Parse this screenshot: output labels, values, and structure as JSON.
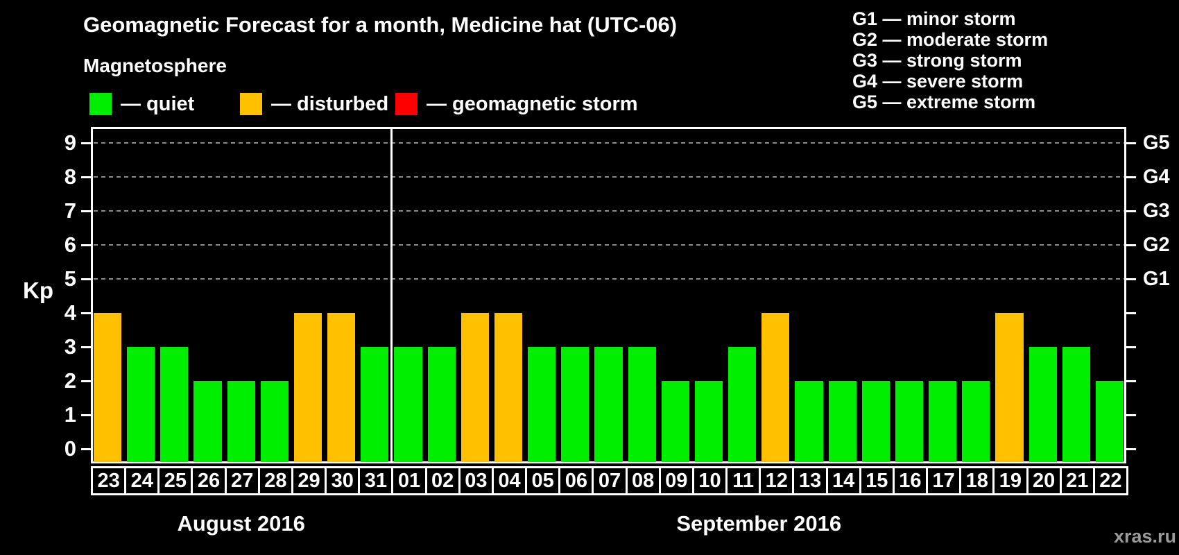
{
  "page": {
    "watermark": "xras.ru"
  },
  "chart_data": {
    "type": "bar",
    "title": "Geomagnetic Forecast for a month, Medicine hat (UTC-06)",
    "subtitle": "Magnetosphere",
    "ylabel": "Kp",
    "ylim": [
      0,
      9
    ],
    "yticks": [
      0,
      1,
      2,
      3,
      4,
      5,
      6,
      7,
      8,
      9
    ],
    "grid": {
      "dashed_levels": [
        5,
        6,
        7,
        8,
        9
      ],
      "color": "#8c8c8c"
    },
    "colors": {
      "quiet": "#00EE00",
      "disturbed": "#FFC000",
      "storm": "#FF0000"
    },
    "legend": [
      {
        "status": "quiet",
        "label": "— quiet"
      },
      {
        "status": "disturbed",
        "label": "— disturbed"
      },
      {
        "status": "storm",
        "label": "— geomagnetic storm"
      }
    ],
    "g_scale_legend": [
      "G1 — minor storm",
      "G2 — moderate storm",
      "G3 — strong storm",
      "G4 — severe storm",
      "G5 — extreme storm"
    ],
    "right_axis": [
      {
        "kp": 9,
        "label": "G5"
      },
      {
        "kp": 8,
        "label": "G4"
      },
      {
        "kp": 7,
        "label": "G3"
      },
      {
        "kp": 6,
        "label": "G2"
      },
      {
        "kp": 5,
        "label": "G1"
      }
    ],
    "months": [
      {
        "label": "August 2016",
        "days": [
          {
            "date": "23",
            "kp": 4,
            "status": "disturbed"
          },
          {
            "date": "24",
            "kp": 3,
            "status": "quiet"
          },
          {
            "date": "25",
            "kp": 3,
            "status": "quiet"
          },
          {
            "date": "26",
            "kp": 2,
            "status": "quiet"
          },
          {
            "date": "27",
            "kp": 2,
            "status": "quiet"
          },
          {
            "date": "28",
            "kp": 2,
            "status": "quiet"
          },
          {
            "date": "29",
            "kp": 4,
            "status": "disturbed"
          },
          {
            "date": "30",
            "kp": 4,
            "status": "disturbed"
          },
          {
            "date": "31",
            "kp": 3,
            "status": "quiet"
          }
        ]
      },
      {
        "label": "September 2016",
        "days": [
          {
            "date": "01",
            "kp": 3,
            "status": "quiet"
          },
          {
            "date": "02",
            "kp": 3,
            "status": "quiet"
          },
          {
            "date": "03",
            "kp": 4,
            "status": "disturbed"
          },
          {
            "date": "04",
            "kp": 4,
            "status": "disturbed"
          },
          {
            "date": "05",
            "kp": 3,
            "status": "quiet"
          },
          {
            "date": "06",
            "kp": 3,
            "status": "quiet"
          },
          {
            "date": "07",
            "kp": 3,
            "status": "quiet"
          },
          {
            "date": "08",
            "kp": 3,
            "status": "quiet"
          },
          {
            "date": "09",
            "kp": 2,
            "status": "quiet"
          },
          {
            "date": "10",
            "kp": 2,
            "status": "quiet"
          },
          {
            "date": "11",
            "kp": 3,
            "status": "quiet"
          },
          {
            "date": "12",
            "kp": 4,
            "status": "disturbed"
          },
          {
            "date": "13",
            "kp": 2,
            "status": "quiet"
          },
          {
            "date": "14",
            "kp": 2,
            "status": "quiet"
          },
          {
            "date": "15",
            "kp": 2,
            "status": "quiet"
          },
          {
            "date": "16",
            "kp": 2,
            "status": "quiet"
          },
          {
            "date": "17",
            "kp": 2,
            "status": "quiet"
          },
          {
            "date": "18",
            "kp": 2,
            "status": "quiet"
          },
          {
            "date": "19",
            "kp": 4,
            "status": "disturbed"
          },
          {
            "date": "20",
            "kp": 3,
            "status": "quiet"
          },
          {
            "date": "21",
            "kp": 3,
            "status": "quiet"
          },
          {
            "date": "22",
            "kp": 2,
            "status": "quiet"
          }
        ]
      }
    ]
  }
}
